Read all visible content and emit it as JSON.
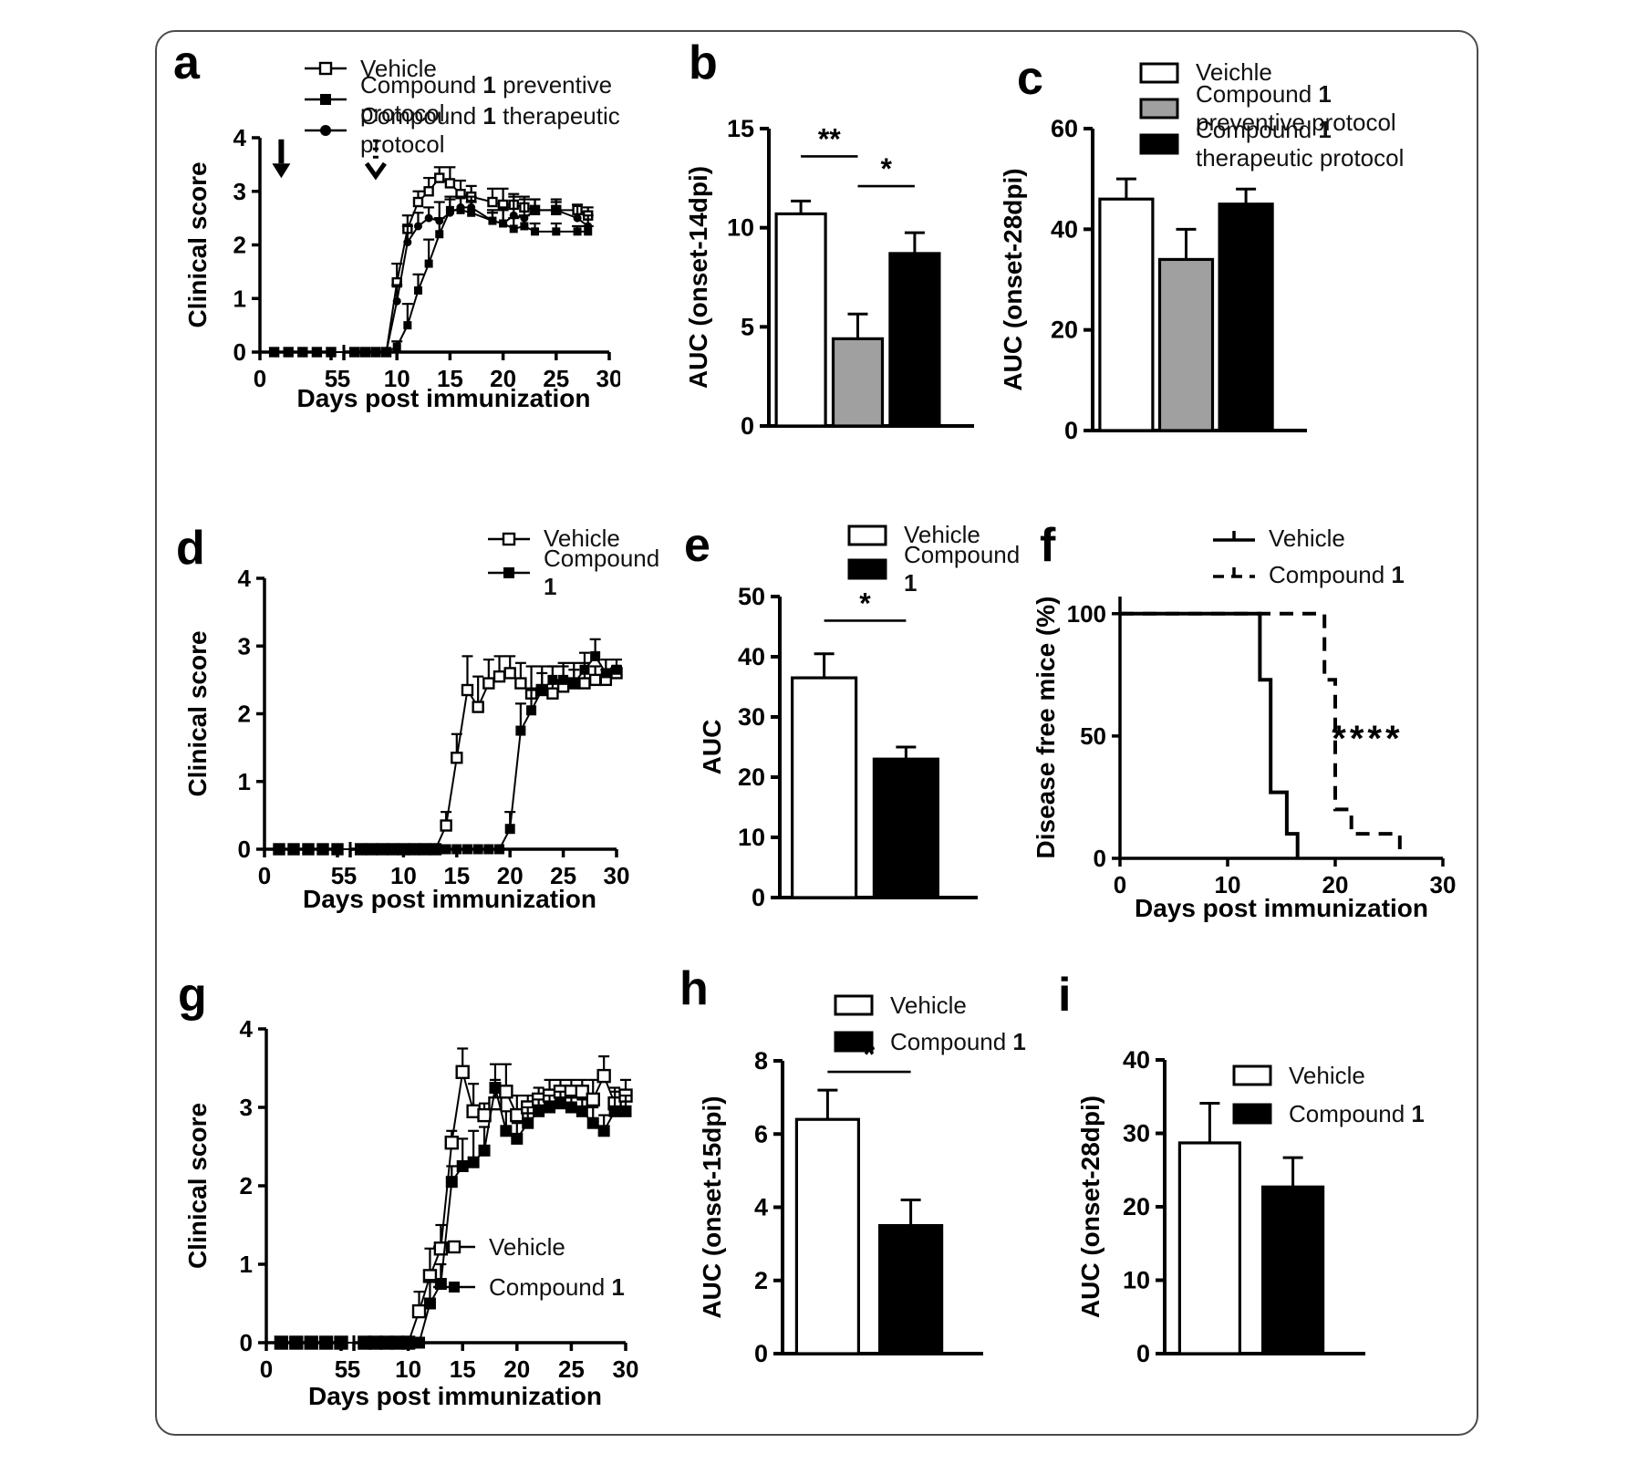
{
  "colors": {
    "bar_white": "#ffffff",
    "bar_gray": "#a0a0a0",
    "bar_black": "#000000",
    "axis": "#000000"
  },
  "chart_data": [
    {
      "id": "a",
      "panel_letter": "a",
      "type": "line",
      "xlabel": "Days post immunization",
      "ylabel": "Clinical score",
      "ylim": [
        0,
        4
      ],
      "yticks": [
        0,
        1,
        2,
        3,
        4
      ],
      "x_break": true,
      "xticks_seg1": [
        0,
        5
      ],
      "xticks_seg2": [
        5,
        10,
        15,
        20,
        25,
        30
      ],
      "legend": [
        {
          "marker": "line-open-square",
          "label": "Vehicle"
        },
        {
          "marker": "line-filled-square",
          "label": "Compound 1 preventive protocol"
        },
        {
          "marker": "line-filled-circle",
          "label": "Compound 1 therapeutic protocol"
        }
      ],
      "annotations": {
        "arrows": [
          {
            "day": 1.5,
            "style": "solid"
          },
          {
            "day": 8,
            "style": "dotted"
          }
        ]
      },
      "series": [
        {
          "name": "Vehicle",
          "marker": "open-square",
          "x": [
            1,
            2,
            3,
            4,
            5,
            6,
            7,
            8,
            9,
            10,
            11,
            12,
            13,
            14,
            15,
            16,
            17,
            19,
            20,
            21,
            22,
            23,
            25,
            27,
            28
          ],
          "y": [
            0,
            0,
            0,
            0,
            0,
            0,
            0,
            0,
            0,
            1.3,
            2.3,
            2.8,
            3.0,
            3.25,
            3.15,
            2.95,
            2.9,
            2.8,
            2.75,
            2.75,
            2.7,
            2.65,
            2.65,
            2.65,
            2.55
          ],
          "err": [
            0,
            0,
            0,
            0,
            0,
            0,
            0,
            0,
            0,
            0.35,
            0.25,
            0.2,
            0.25,
            0.2,
            0.3,
            0.25,
            0.2,
            0.25,
            0.3,
            0.2,
            0.2,
            0.2,
            0.15,
            0.1,
            0.15
          ]
        },
        {
          "name": "Compound 1 preventive protocol",
          "marker": "filled-square",
          "x": [
            1,
            2,
            3,
            4,
            5,
            6,
            7,
            8,
            9,
            10,
            11,
            12,
            13,
            14,
            15,
            16,
            17,
            19,
            20,
            21,
            22,
            23,
            25,
            27,
            28
          ],
          "y": [
            0,
            0,
            0,
            0,
            0,
            0,
            0,
            0,
            0,
            0.1,
            0.5,
            1.15,
            1.65,
            2.2,
            2.65,
            2.65,
            2.6,
            2.45,
            2.4,
            2.3,
            2.35,
            2.25,
            2.25,
            2.25,
            2.25
          ],
          "err": [
            0,
            0,
            0,
            0,
            0,
            0,
            0,
            0,
            0,
            0.1,
            0.4,
            0.3,
            0.45,
            0.3,
            0.2,
            0.25,
            0.2,
            0.15,
            0.25,
            0.2,
            0.2,
            0.15,
            0.15,
            0.1,
            0.1
          ]
        },
        {
          "name": "Compound 1 therapeutic protocol",
          "marker": "filled-circle",
          "x": [
            1,
            2,
            3,
            4,
            5,
            6,
            7,
            8,
            9,
            10,
            11,
            12,
            13,
            14,
            15,
            16,
            17,
            19,
            20,
            21,
            22,
            23,
            25,
            27,
            28
          ],
          "y": [
            0,
            0,
            0,
            0,
            0,
            0,
            0,
            0,
            0,
            0.95,
            2.05,
            2.35,
            2.5,
            2.45,
            2.6,
            2.7,
            2.7,
            2.45,
            2.4,
            2.55,
            2.5,
            2.65,
            2.65,
            2.5,
            2.35
          ],
          "err": [
            0,
            0,
            0,
            0,
            0,
            0,
            0,
            0,
            0,
            0.3,
            0.3,
            0.25,
            0.2,
            0.35,
            0.3,
            0.2,
            0.2,
            0.2,
            0.3,
            0.35,
            0.35,
            0.2,
            0.2,
            0.25,
            0.2
          ]
        }
      ]
    },
    {
      "id": "b",
      "panel_letter": "b",
      "type": "bar",
      "ylabel": "AUC (onset-14dpi)",
      "ylim": [
        0,
        15
      ],
      "yticks": [
        0,
        5,
        10,
        15
      ],
      "bars": [
        {
          "name": "Vehicle",
          "value": 10.7,
          "err": 0.65,
          "fill": "#ffffff"
        },
        {
          "name": "Compound 1 preventive protocol",
          "value": 4.4,
          "err": 1.25,
          "fill": "#a0a0a0"
        },
        {
          "name": "Compound 1 therapeutic protocol",
          "value": 8.7,
          "err": 1.05,
          "fill": "#000000"
        }
      ],
      "significance": [
        {
          "from": 0,
          "to": 1,
          "y": 13.6,
          "label": "**"
        },
        {
          "from": 1,
          "to": 2,
          "y": 12.1,
          "label": "*"
        }
      ]
    },
    {
      "id": "c",
      "panel_letter": "c",
      "type": "bar",
      "ylabel": "AUC (onset-28dpi)",
      "ylim": [
        0,
        60
      ],
      "yticks": [
        0,
        20,
        40,
        60
      ],
      "legend": [
        {
          "marker": "box-white",
          "label": "Veichle"
        },
        {
          "marker": "box-gray",
          "label": "Compound 1 preventive protocol"
        },
        {
          "marker": "box-black",
          "label": "Compound 1 therapeutic protocol"
        }
      ],
      "bars": [
        {
          "name": "Veichle",
          "value": 46,
          "err": 4,
          "fill": "#ffffff"
        },
        {
          "name": "Compound 1 preventive protocol",
          "value": 34,
          "err": 6,
          "fill": "#a0a0a0"
        },
        {
          "name": "Compound 1 therapeutic protocol",
          "value": 45,
          "err": 3,
          "fill": "#000000"
        }
      ],
      "significance": []
    },
    {
      "id": "d",
      "panel_letter": "d",
      "type": "line",
      "xlabel": "Days post immunization",
      "ylabel": "Clinical score",
      "ylim": [
        0,
        4
      ],
      "yticks": [
        0,
        1,
        2,
        3,
        4
      ],
      "x_break": true,
      "xticks_seg1": [
        0,
        5
      ],
      "xticks_seg2": [
        5,
        10,
        15,
        20,
        25,
        30
      ],
      "legend": [
        {
          "marker": "line-open-square",
          "label": "Vehicle"
        },
        {
          "marker": "line-filled-square",
          "label": "Compound 1"
        }
      ],
      "series": [
        {
          "name": "Vehicle",
          "marker": "open-square",
          "x": [
            1,
            2,
            3,
            4,
            5,
            6,
            7,
            8,
            9,
            10,
            11,
            12,
            13,
            14,
            15,
            16,
            17,
            18,
            19,
            20,
            21,
            22,
            23,
            24,
            25,
            26,
            27,
            28,
            29,
            30
          ],
          "y": [
            0,
            0,
            0,
            0,
            0,
            0,
            0,
            0,
            0,
            0,
            0,
            0,
            0,
            0.35,
            1.35,
            2.35,
            2.1,
            2.45,
            2.55,
            2.6,
            2.45,
            2.3,
            2.35,
            2.3,
            2.4,
            2.45,
            2.45,
            2.5,
            2.5,
            2.6
          ],
          "err": [
            0,
            0,
            0,
            0,
            0,
            0,
            0,
            0,
            0,
            0,
            0,
            0,
            0,
            0.2,
            0.35,
            0.5,
            0.45,
            0.35,
            0.3,
            0.25,
            0.3,
            0.4,
            0.35,
            0.4,
            0.35,
            0.3,
            0.3,
            0.2,
            0.15,
            0.1
          ]
        },
        {
          "name": "Compound 1",
          "marker": "filled-square",
          "x": [
            1,
            2,
            3,
            4,
            5,
            6,
            7,
            8,
            9,
            10,
            11,
            12,
            13,
            14,
            15,
            16,
            17,
            18,
            19,
            20,
            21,
            22,
            23,
            24,
            25,
            26,
            27,
            28,
            29,
            30
          ],
          "y": [
            0,
            0,
            0,
            0,
            0,
            0,
            0,
            0,
            0,
            0,
            0,
            0,
            0,
            0,
            0,
            0,
            0,
            0,
            0,
            0.3,
            1.75,
            2.05,
            2.35,
            2.5,
            2.5,
            2.45,
            2.65,
            2.85,
            2.6,
            2.65
          ],
          "err": [
            0,
            0,
            0,
            0,
            0,
            0,
            0,
            0,
            0,
            0,
            0,
            0,
            0,
            0,
            0,
            0,
            0,
            0,
            0,
            0.25,
            0.4,
            0.3,
            0.25,
            0.2,
            0.2,
            0.2,
            0.25,
            0.25,
            0.2,
            0.15
          ]
        }
      ]
    },
    {
      "id": "e",
      "panel_letter": "e",
      "type": "bar",
      "ylabel": "AUC",
      "ylim": [
        0,
        50
      ],
      "yticks": [
        0,
        10,
        20,
        30,
        40,
        50
      ],
      "legend": [
        {
          "marker": "box-white",
          "label": "Vehicle"
        },
        {
          "marker": "box-black",
          "label": "Compound 1"
        }
      ],
      "bars": [
        {
          "name": "Vehicle",
          "value": 36.5,
          "err": 4,
          "fill": "#ffffff"
        },
        {
          "name": "Compound 1",
          "value": 23,
          "err": 2,
          "fill": "#000000"
        }
      ],
      "significance": [
        {
          "from": 0,
          "to": 1,
          "y": 46,
          "label": "*"
        }
      ]
    },
    {
      "id": "f",
      "panel_letter": "f",
      "type": "step",
      "xlabel": "Days post immunization",
      "ylabel": "Disease free mice (%)",
      "ylim": [
        0,
        100
      ],
      "yticks": [
        0,
        50,
        100
      ],
      "xticks": [
        0,
        10,
        20,
        30
      ],
      "legend": [
        {
          "marker": "line-solid-tick",
          "label": "Vehicle"
        },
        {
          "marker": "line-dashed-tick",
          "label": "Compound 1"
        }
      ],
      "annotations": {
        "text": [
          {
            "x": 23,
            "y": 44,
            "label": "****"
          }
        ]
      },
      "series": [
        {
          "name": "Vehicle",
          "style": "solid",
          "points": [
            [
              0,
              100
            ],
            [
              13,
              100
            ],
            [
              13,
              73
            ],
            [
              14,
              73
            ],
            [
              14,
              27
            ],
            [
              15.5,
              27
            ],
            [
              15.5,
              10
            ],
            [
              16.5,
              10
            ],
            [
              16.5,
              0
            ]
          ]
        },
        {
          "name": "Compound 1",
          "style": "dashed",
          "points": [
            [
              0,
              100
            ],
            [
              19,
              100
            ],
            [
              19,
              73
            ],
            [
              20,
              73
            ],
            [
              20,
              20
            ],
            [
              21.5,
              20
            ],
            [
              21.5,
              10
            ],
            [
              26,
              10
            ],
            [
              26,
              0
            ]
          ]
        }
      ]
    },
    {
      "id": "g",
      "panel_letter": "g",
      "type": "line",
      "xlabel": "Days post immunization",
      "ylabel": "Clinical score",
      "ylim": [
        0,
        4
      ],
      "yticks": [
        0,
        1,
        2,
        3,
        4
      ],
      "x_break": true,
      "xticks_seg1": [
        0,
        5
      ],
      "xticks_seg2": [
        5,
        10,
        15,
        20,
        25,
        30
      ],
      "legend": [
        {
          "marker": "line-open-square",
          "label": "Vehicle"
        },
        {
          "marker": "line-filled-square",
          "label": "Compound 1"
        }
      ],
      "series": [
        {
          "name": "Vehicle",
          "marker": "open-square",
          "x": [
            1,
            2,
            3,
            4,
            5,
            6,
            7,
            8,
            9,
            10,
            11,
            12,
            13,
            14,
            15,
            16,
            17,
            18,
            19,
            20,
            21,
            22,
            23,
            24,
            25,
            26,
            27,
            28,
            29,
            30
          ],
          "y": [
            0,
            0,
            0,
            0,
            0,
            0,
            0,
            0,
            0,
            0,
            0.4,
            0.85,
            1.2,
            2.55,
            3.45,
            2.95,
            2.9,
            3.05,
            3.2,
            2.9,
            3.0,
            3.1,
            3.15,
            3.2,
            3.2,
            3.2,
            3.1,
            3.4,
            3.05,
            3.15
          ],
          "err": [
            0,
            0,
            0,
            0,
            0,
            0,
            0,
            0,
            0,
            0,
            0.25,
            0.35,
            0.3,
            0.15,
            0.3,
            0.35,
            0.15,
            0.3,
            0.35,
            0.25,
            0.15,
            0.15,
            0.2,
            0.15,
            0.15,
            0.15,
            0.25,
            0.25,
            0.2,
            0.2
          ]
        },
        {
          "name": "Compound 1",
          "marker": "filled-square",
          "x": [
            1,
            2,
            3,
            4,
            5,
            6,
            7,
            8,
            9,
            10,
            11,
            12,
            13,
            14,
            15,
            16,
            17,
            18,
            19,
            20,
            21,
            22,
            23,
            24,
            25,
            26,
            27,
            28,
            29,
            30
          ],
          "y": [
            0,
            0,
            0,
            0,
            0,
            0,
            0,
            0,
            0,
            0,
            0,
            0.5,
            0.75,
            2.05,
            2.25,
            2.3,
            2.45,
            3.25,
            2.7,
            2.6,
            2.8,
            2.95,
            3.0,
            3.05,
            3.0,
            2.95,
            2.8,
            2.7,
            2.95,
            2.95
          ],
          "err": [
            0,
            0,
            0,
            0,
            0,
            0,
            0,
            0,
            0,
            0,
            0,
            0.3,
            0.25,
            0.2,
            0.35,
            0.4,
            0.3,
            0.3,
            0.25,
            0.2,
            0.2,
            0.15,
            0.15,
            0.15,
            0.15,
            0.15,
            0.2,
            0.2,
            0.25,
            0.2
          ]
        }
      ]
    },
    {
      "id": "h",
      "panel_letter": "h",
      "type": "bar",
      "ylabel": "AUC (onset-15dpi)",
      "ylim": [
        0,
        8
      ],
      "yticks": [
        0,
        2,
        4,
        6,
        8
      ],
      "legend": [
        {
          "marker": "box-white",
          "label": "Vehicle"
        },
        {
          "marker": "box-black",
          "label": "Compound 1"
        }
      ],
      "bars": [
        {
          "name": "Vehicle",
          "value": 6.4,
          "err": 0.8,
          "fill": "#ffffff"
        },
        {
          "name": "Compound 1",
          "value": 3.5,
          "err": 0.7,
          "fill": "#000000"
        }
      ],
      "significance": [
        {
          "from": 0,
          "to": 1,
          "y": 7.7,
          "label": "*"
        }
      ]
    },
    {
      "id": "i",
      "panel_letter": "i",
      "type": "bar",
      "ylabel": "AUC (onset-28dpi)",
      "ylim": [
        0,
        40
      ],
      "yticks": [
        0,
        10,
        20,
        30,
        40
      ],
      "legend": [
        {
          "marker": "box-white",
          "label": "Vehicle"
        },
        {
          "marker": "box-black",
          "label": "Compound 1"
        }
      ],
      "bars": [
        {
          "name": "Vehicle",
          "value": 28.7,
          "err": 5.4,
          "fill": "#ffffff"
        },
        {
          "name": "Compound 1",
          "value": 22.7,
          "err": 4,
          "fill": "#000000"
        }
      ],
      "significance": []
    }
  ]
}
